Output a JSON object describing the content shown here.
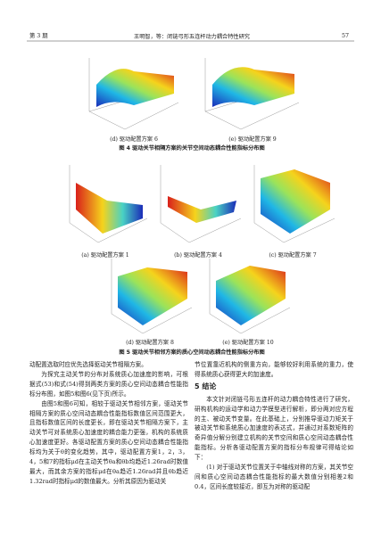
{
  "header": {
    "issue": "第 3 期",
    "title": "王明智，等：闭链弓形五连杆动力耦合特性研究",
    "page": "57"
  },
  "figure4": {
    "subcaptions": [
      "(d) 驱动配置方案 6",
      "(e) 驱动配置方案 9"
    ],
    "caption": "图 4  驱动关节相隔方案的关节空间动态耦合性能指标分布图"
  },
  "figure5": {
    "subcaptions": [
      "(a) 驱动配置方案 1",
      "(b) 驱动配置方案 4",
      "(c) 驱动配置方案 7",
      "(d) 驱动配置方案 8",
      "(e) 驱动配置方案 10"
    ],
    "caption": "图 5  驱动关节相邻方案的质心空间动态耦合性能指标分布图"
  },
  "body": {
    "left": [
      "动配置选取时应优先选择驱动关节相隔方案。",
      "为探究主动关节的分布对系统质心加速度的影响，可根据式(53)和式(54)得到两类方案的质心空间动态耦合性能指标分布图，如图5和图6(见下页)所示。",
      "由图5和图6可知，相较于驱动关节相邻方案，驱动关节相隔方案的质心空间动态耦合性能指标数值区间范围更大，且指标数值区间的长度更长，即在驱动关节相隔方案下，主动关节可对系统质心加速度的耦合能力更强，机构的系统质心加速度更好。各驱动配置方案的质心空间动态耦合性能指标均为关于θ的变化趋势，其中，驱动配置方案1，2，3，4，5和7的指标μd在主动关节θa和θb均趋近1.26rad时数值最大，而其余方案的指标μd在θa趋近1.26rad并且θb趋近1.32rad时指标μd的数值最大。分析其原因为驱动关"
    ],
    "section_heading": "5  结论",
    "right": [
      "节位置靠近机构的侧重方向，能够较好利用系统的重力，使得系统质心获得更大的加速度。",
      "本文针对闭链弓形五连杆的动力耦合特性进行了研究，研构机构的运动学和动力学模型进行解析，即分两对应方程的主、被动关节变量。在此基础上，分别推导驱动力矩关于被动关节和系统质心加速度的表达式，并通过对系数矩阵的奇异值分解分别建立机构的关节空间和质心空间动态耦合性能指标。分析各驱动配置方案的指标分布规律可得结论如下：",
      "(1) 对于驱动关节位置关于中轴线对称的方案，其关节空间和质心空间动态耦合性能指标的最大数值分别相差2和0.4，区间长度较接近，即互为对称的驱动配"
    ]
  }
}
